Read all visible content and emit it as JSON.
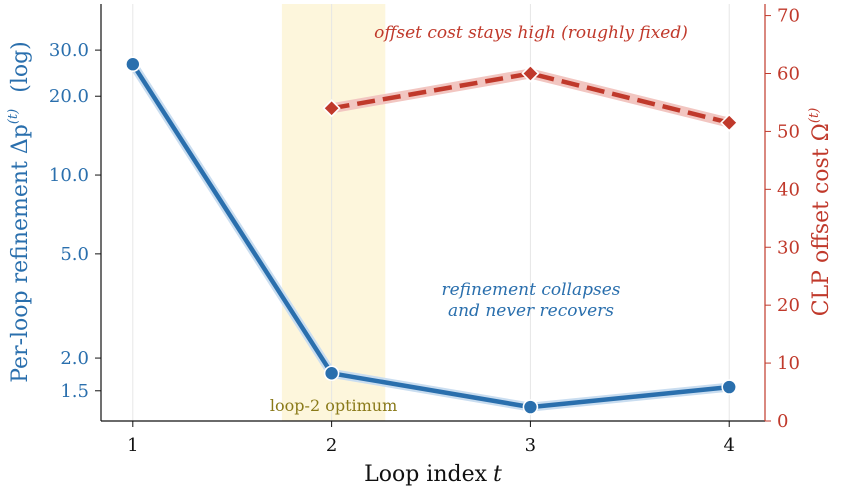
{
  "chart_data": {
    "type": "line",
    "xlabel": "Loop index",
    "xlabel_var": "t",
    "x_ticks": [
      "1",
      "2",
      "3",
      "4"
    ],
    "x": [
      1,
      2,
      3,
      4
    ],
    "xlim": [
      0.84,
      4.18
    ],
    "left_axis": {
      "label_main": "Per-loop refinement Δp",
      "label_sup": "(t)",
      "label_suffix": "(log)",
      "scale": "log",
      "ylim": [
        1.15,
        45
      ],
      "ticks": [
        1.5,
        2.0,
        5.0,
        10.0,
        20.0,
        30.0
      ],
      "tick_labels": [
        "1.5",
        "2.0",
        "5.0",
        "10.0",
        "20.0",
        "30.0"
      ],
      "color": "#2a6fad"
    },
    "right_axis": {
      "label_main": "CLP offset cost Ω",
      "label_sup": "(t)",
      "scale": "linear",
      "ylim": [
        0,
        72
      ],
      "ticks": [
        0,
        10,
        20,
        30,
        40,
        50,
        60,
        70
      ],
      "tick_labels": [
        "0",
        "10",
        "20",
        "30",
        "40",
        "50",
        "60",
        "70"
      ],
      "color": "#c0392b"
    },
    "series": [
      {
        "axis": "left",
        "style": "solid",
        "marker": "circle",
        "color": "#2a6fad",
        "x": [
          1,
          2,
          3,
          4
        ],
        "values": [
          26.5,
          1.75,
          1.3,
          1.55
        ]
      },
      {
        "axis": "right",
        "style": "dashed",
        "marker": "diamond",
        "color": "#c0392b",
        "x": [
          2,
          3,
          4
        ],
        "values": [
          54,
          60,
          51.5
        ]
      }
    ],
    "highlight_band": {
      "x_range": [
        1.75,
        2.27
      ],
      "color": "#fdf6dc",
      "label": "loop-2 optimum"
    },
    "annotations": [
      {
        "text": "offset cost stays high (roughly fixed)",
        "color": "#c0392b"
      },
      {
        "line1": "refinement collapses",
        "line2": "and never recovers",
        "color": "#2a6fad"
      }
    ],
    "grid": "vertical-only"
  }
}
